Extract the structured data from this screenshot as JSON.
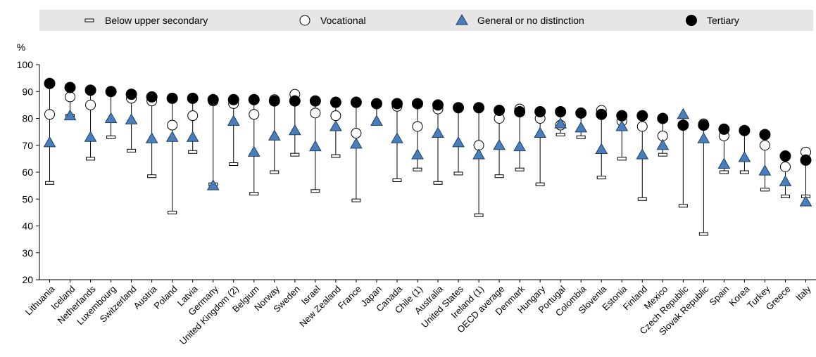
{
  "chart_data": {
    "type": "scatter",
    "ylabel": "%",
    "ylim": [
      20,
      100
    ],
    "yticks": [
      20,
      30,
      40,
      50,
      60,
      70,
      80,
      90,
      100
    ],
    "legend_position": "top",
    "categories": [
      "Lithuania",
      "Iceland",
      "Netherlands",
      "Luxembourg",
      "Switzerland",
      "Austria",
      "Poland",
      "Latvia",
      "Germany",
      "United Kingdom (2)",
      "Belgium",
      "Norway",
      "Sweden",
      "Israel",
      "New Zealand",
      "France",
      "Japan",
      "Canada",
      "Chile (1)",
      "Australia",
      "United States",
      "Ireland (1)",
      "OECD average",
      "Denmark",
      "Hungary",
      "Portugal",
      "Colombia",
      "Slovenia",
      "Estonia",
      "Finland",
      "Mexico",
      "Czech Republic",
      "Slovak Republic",
      "Spain",
      "Korea",
      "Turkey",
      "Greece",
      "Italy"
    ],
    "series": [
      {
        "name": "Below upper secondary",
        "marker": "dash",
        "color": "#ffffff",
        "values": [
          56,
          81,
          65,
          73,
          68,
          58.5,
          45,
          67.5,
          55.5,
          63,
          52,
          60,
          66.5,
          53,
          66,
          49.5,
          null,
          57,
          61,
          56,
          59.5,
          44,
          58.5,
          61,
          55.5,
          74,
          73,
          58,
          65,
          50,
          66.5,
          47.5,
          37,
          60,
          60,
          53.5,
          51,
          51
        ]
      },
      {
        "name": "Vocational",
        "marker": "circle",
        "color": "#ffffff",
        "values": [
          81.5,
          88,
          85,
          null,
          87.5,
          86.5,
          77.5,
          81,
          86.5,
          85.5,
          81.5,
          87,
          89,
          82,
          81,
          74.5,
          null,
          84.5,
          77,
          83.5,
          null,
          70,
          80,
          83.5,
          80,
          77.5,
          null,
          83,
          79,
          77,
          73.5,
          null,
          78,
          73.5,
          null,
          70,
          62,
          67.5
        ]
      },
      {
        "name": "General or no distinction",
        "marker": "triangle",
        "color": "#4a7ebb",
        "values": [
          71,
          81,
          73,
          80,
          79.5,
          72.5,
          73,
          73,
          55,
          79,
          67.5,
          73.5,
          75.5,
          69.5,
          77,
          70.5,
          79,
          72.5,
          66.5,
          74.5,
          71,
          66.5,
          70,
          69.5,
          74.5,
          78,
          76.5,
          68.5,
          77,
          66.5,
          70,
          81.5,
          72.5,
          63,
          65.5,
          60.5,
          56.5,
          49
        ]
      },
      {
        "name": "Tertiary",
        "marker": "filled-circle",
        "color": "#000000",
        "values": [
          93,
          91.5,
          90.5,
          90,
          89,
          88,
          87.5,
          87.5,
          87,
          87,
          87,
          86.5,
          86.5,
          86.5,
          86,
          86,
          85.5,
          85.5,
          85.5,
          85,
          84,
          84,
          83,
          82.5,
          82.5,
          82.5,
          82,
          81.5,
          81,
          81,
          80,
          77.5,
          77.5,
          76,
          75.5,
          74,
          66,
          64.5
        ]
      }
    ]
  }
}
